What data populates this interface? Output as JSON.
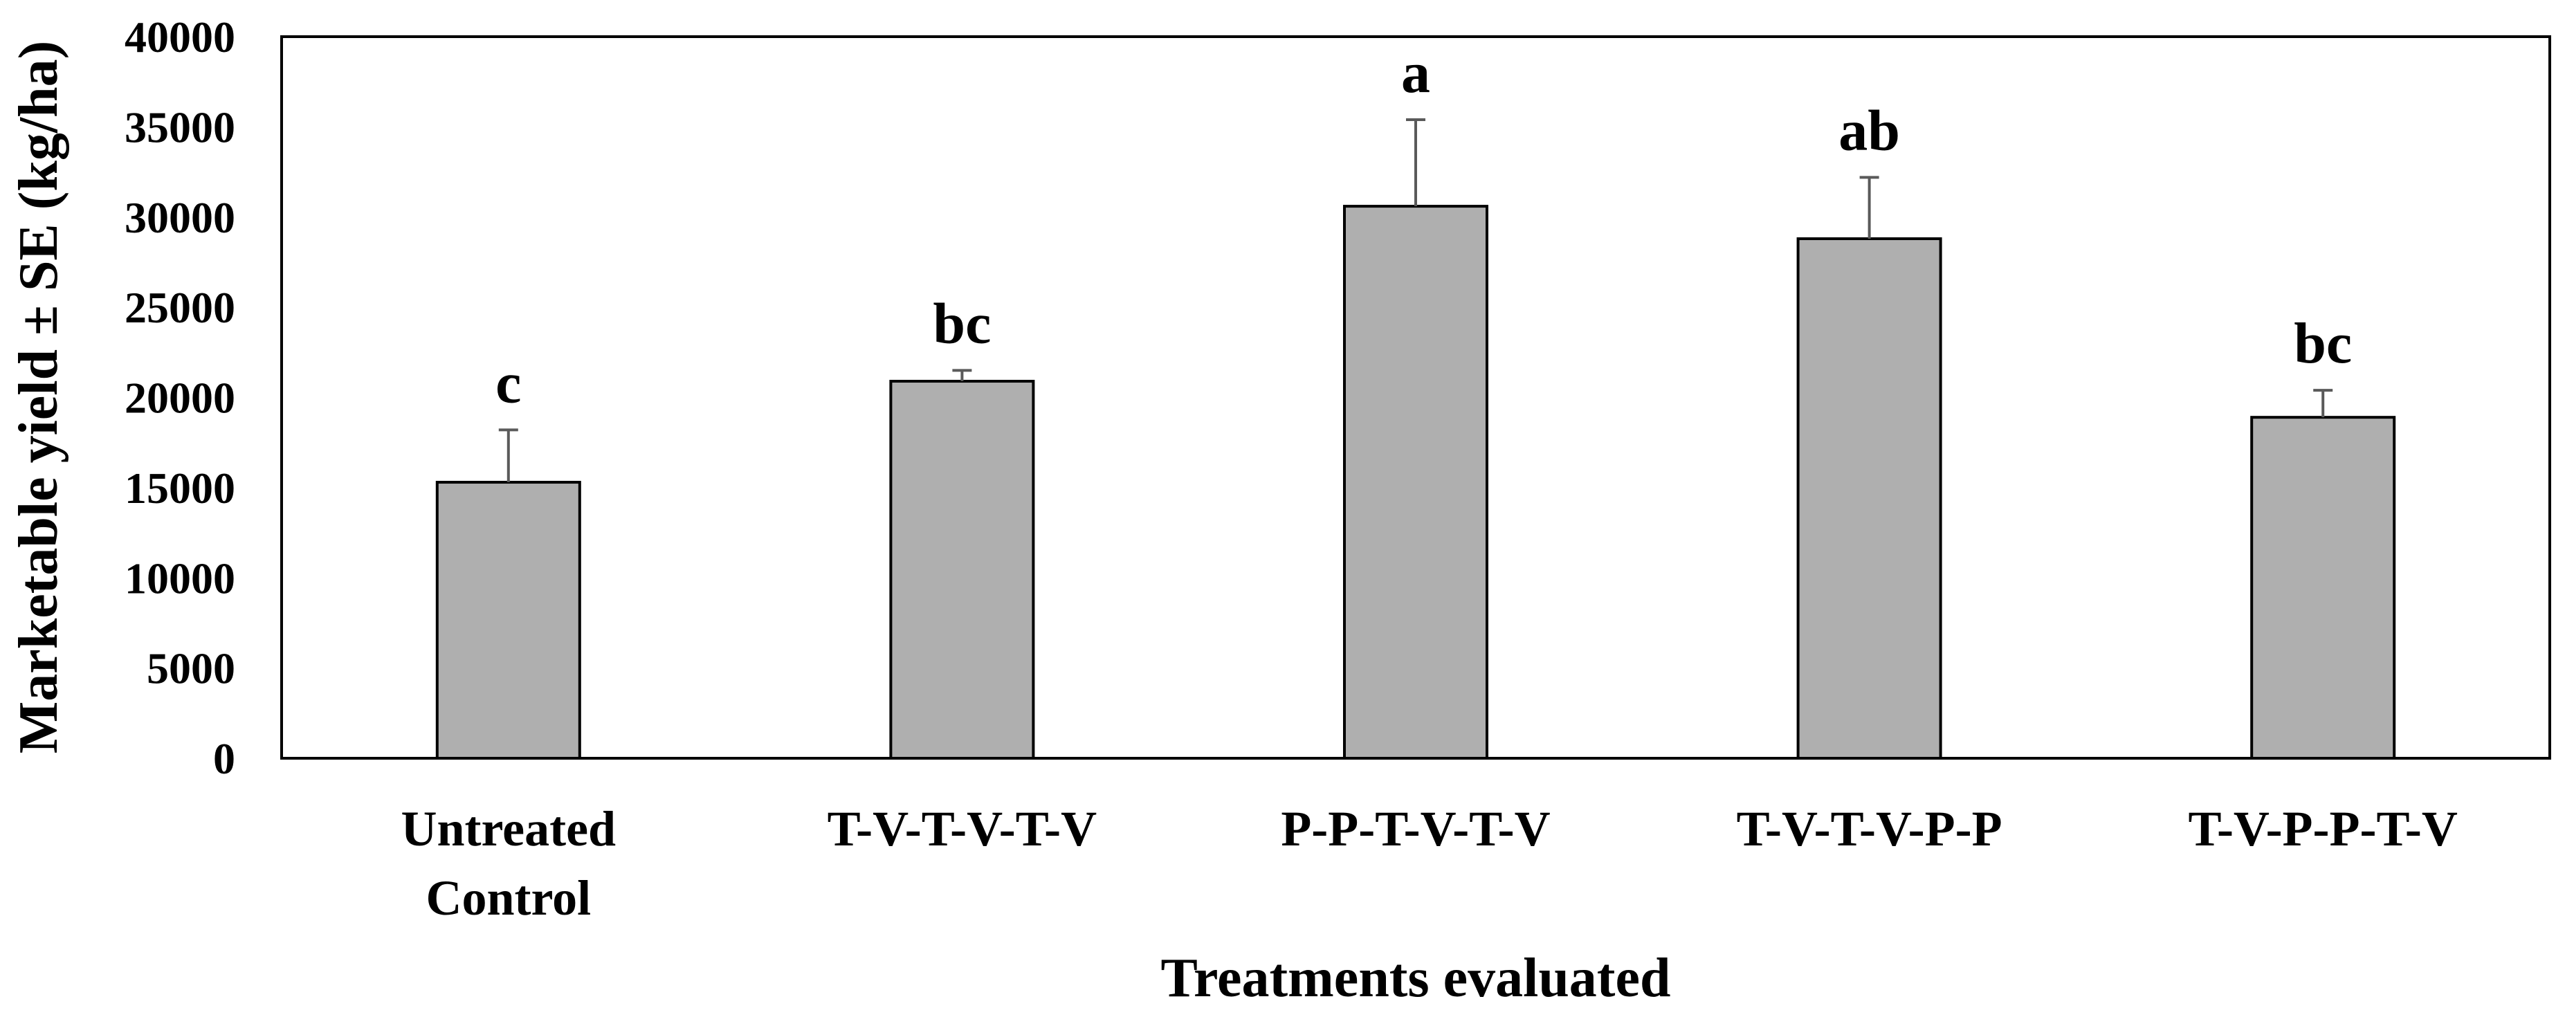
{
  "chart_data": {
    "type": "bar",
    "title": "",
    "xlabel": "Treatments evaluated",
    "ylabel": "Marketable yield ± SE (kg/ha)",
    "ylim": [
      0,
      40000
    ],
    "yticks": [
      0,
      5000,
      10000,
      15000,
      20000,
      25000,
      30000,
      35000,
      40000
    ],
    "grid": false,
    "legend": "none",
    "categories": [
      [
        "Untreated",
        "Control"
      ],
      [
        "T-V-T-V-T-V"
      ],
      [
        "P-P-T-V-T-V"
      ],
      [
        "T-V-T-V-P-P"
      ],
      [
        "T-V-P-P-T-V"
      ]
    ],
    "values": [
      15300,
      20900,
      30600,
      28800,
      18900
    ],
    "errors": [
      2900,
      600,
      4800,
      3400,
      1500
    ],
    "significance_letters": [
      "c",
      "bc",
      "a",
      "ab",
      "bc"
    ],
    "colors": {
      "bar_fill": "#afafaf",
      "bar_stroke": "#000000",
      "error_bar": "#5a5a5a",
      "axis": "#000000"
    }
  }
}
